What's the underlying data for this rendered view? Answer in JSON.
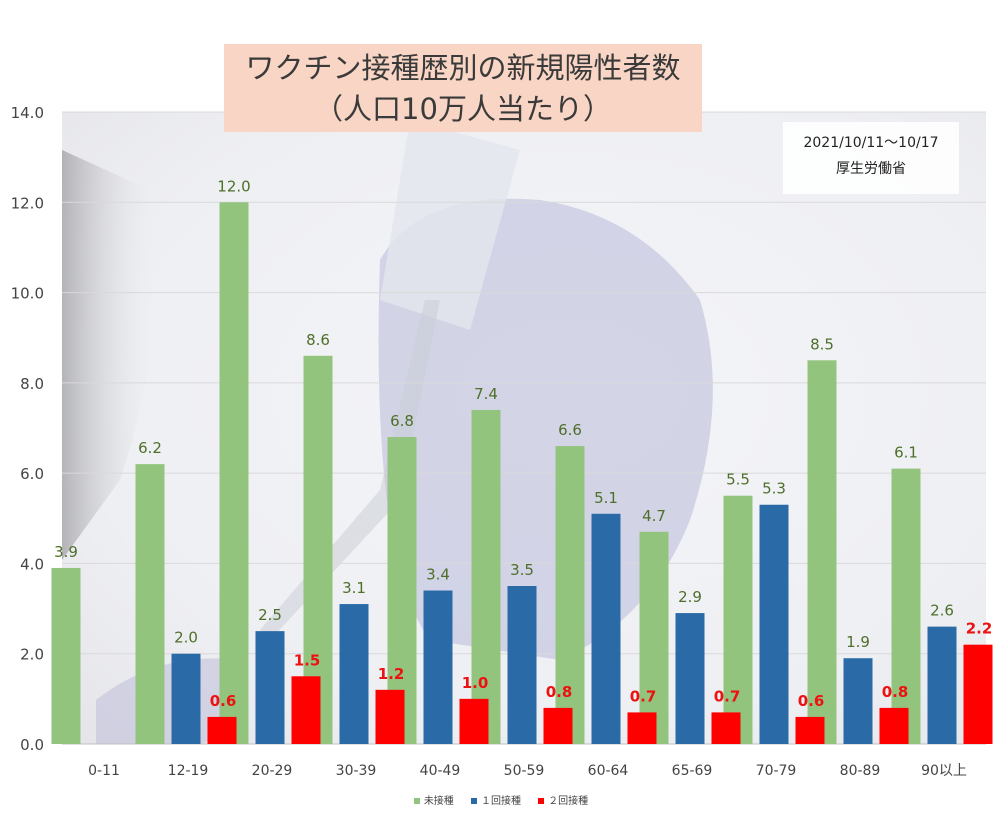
{
  "title_line1": "ワクチン接種歴別の新規陽性者数",
  "title_line2": "（人口10万人当たり）",
  "source_period": "2021/10/11～10/17",
  "source_org": "厚生労働省",
  "chart_data": {
    "type": "bar",
    "title": "ワクチン接種歴別の新規陽性者数（人口10万人当たり）",
    "xlabel": "",
    "ylabel": "",
    "ylim": [
      0,
      14
    ],
    "yticks": [
      "0.0",
      "2.0",
      "4.0",
      "6.0",
      "8.0",
      "10.0",
      "12.0",
      "14.0"
    ],
    "grid": true,
    "legend_position": "bottom",
    "categories": [
      "0-11",
      "12-19",
      "20-29",
      "30-39",
      "40-49",
      "50-59",
      "60-64",
      "65-69",
      "70-79",
      "80-89",
      "90以上"
    ],
    "series": [
      {
        "name": "未接種",
        "color": "#93c47d",
        "label_color": "#4e6f2a",
        "values": [
          3.9,
          6.2,
          12.0,
          8.6,
          6.8,
          7.4,
          6.6,
          4.7,
          5.5,
          8.5,
          6.1
        ],
        "labels": [
          "3.9",
          "6.2",
          "12.0",
          "8.6",
          "6.8",
          "7.4",
          "6.6",
          "4.7",
          "5.5",
          "8.5",
          "6.1"
        ]
      },
      {
        "name": "１回接種",
        "color": "#2a6aa6",
        "label_color": "#4e6f2a",
        "values": [
          null,
          2.0,
          2.5,
          3.1,
          3.4,
          3.5,
          5.1,
          2.9,
          5.3,
          1.9,
          2.6
        ],
        "labels": [
          "",
          "2.0",
          "2.5",
          "3.1",
          "3.4",
          "3.5",
          "5.1",
          "2.9",
          "5.3",
          "1.9",
          "2.6"
        ]
      },
      {
        "name": "２回接種",
        "color": "#ff0000",
        "label_color": "#ee1111",
        "values": [
          null,
          0.6,
          1.5,
          1.2,
          1.0,
          0.8,
          0.7,
          0.7,
          0.6,
          0.8,
          2.2
        ],
        "labels": [
          "",
          "0.6",
          "1.5",
          "1.2",
          "1.0",
          "0.8",
          "0.7",
          "0.7",
          "0.6",
          "0.8",
          "2.2"
        ]
      }
    ]
  }
}
